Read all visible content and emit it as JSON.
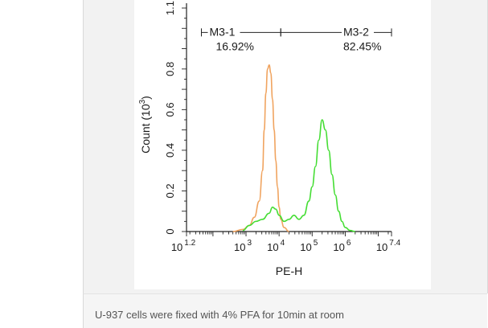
{
  "caption": "U-937 cells were fixed with 4% PFA for 10min at room",
  "chart_data": {
    "type": "line",
    "xlabel": "PE-H",
    "ylabel_main": "Count",
    "ylabel_unit_base": "(10",
    "ylabel_unit_exp": "3",
    "ylabel_unit_close": ")",
    "x_scale": "log",
    "xlim": [
      1.2,
      7.4
    ],
    "ylim": [
      0,
      1.1
    ],
    "x_ticks": [
      {
        "x": 1.2,
        "base": "10",
        "exp": "1.2"
      },
      {
        "x": 3,
        "base": "10",
        "exp": "3"
      },
      {
        "x": 4,
        "base": "10",
        "exp": "4"
      },
      {
        "x": 5,
        "base": "10",
        "exp": "5"
      },
      {
        "x": 6,
        "base": "10",
        "exp": "6"
      },
      {
        "x": 7.4,
        "base": "10",
        "exp": "7.4"
      }
    ],
    "y_ticks": [
      {
        "y": 0,
        "label": "0"
      },
      {
        "y": 0.2,
        "label": "0.2"
      },
      {
        "y": 0.4,
        "label": "0.4"
      },
      {
        "y": 0.6,
        "label": "0.6"
      },
      {
        "y": 0.8,
        "label": "0.8"
      },
      {
        "y": 1.1,
        "label": "1.1"
      }
    ],
    "gates": [
      {
        "name": "M3-1",
        "percent": "16.92%",
        "x_start": 1.65,
        "x_end": 4.05,
        "y": 0.98
      },
      {
        "name": "M3-2",
        "percent": "82.45%",
        "x_start": 4.05,
        "x_end": 7.4,
        "y": 0.98
      }
    ],
    "series": [
      {
        "color": "#f0a460",
        "x": [
          2.6,
          2.9,
          3.1,
          3.25,
          3.4,
          3.5,
          3.55,
          3.6,
          3.65,
          3.7,
          3.75,
          3.8,
          3.85,
          3.9,
          3.95,
          4.0,
          4.05,
          4.15,
          4.3
        ],
        "y": [
          0,
          0.01,
          0.03,
          0.07,
          0.15,
          0.3,
          0.5,
          0.68,
          0.8,
          0.82,
          0.78,
          0.65,
          0.5,
          0.35,
          0.22,
          0.12,
          0.06,
          0.02,
          0
        ]
      },
      {
        "color": "#44dd33",
        "x": [
          2.9,
          3.1,
          3.3,
          3.5,
          3.7,
          3.8,
          3.9,
          4.0,
          4.15,
          4.3,
          4.45,
          4.6,
          4.75,
          4.9,
          5.0,
          5.1,
          5.2,
          5.3,
          5.4,
          5.5,
          5.6,
          5.7,
          5.8,
          5.9,
          6.0,
          6.15,
          6.3
        ],
        "y": [
          0.005,
          0.03,
          0.05,
          0.06,
          0.09,
          0.12,
          0.11,
          0.08,
          0.05,
          0.06,
          0.08,
          0.06,
          0.08,
          0.15,
          0.22,
          0.32,
          0.45,
          0.55,
          0.5,
          0.4,
          0.28,
          0.18,
          0.1,
          0.05,
          0.02,
          0.005,
          0
        ]
      }
    ]
  }
}
